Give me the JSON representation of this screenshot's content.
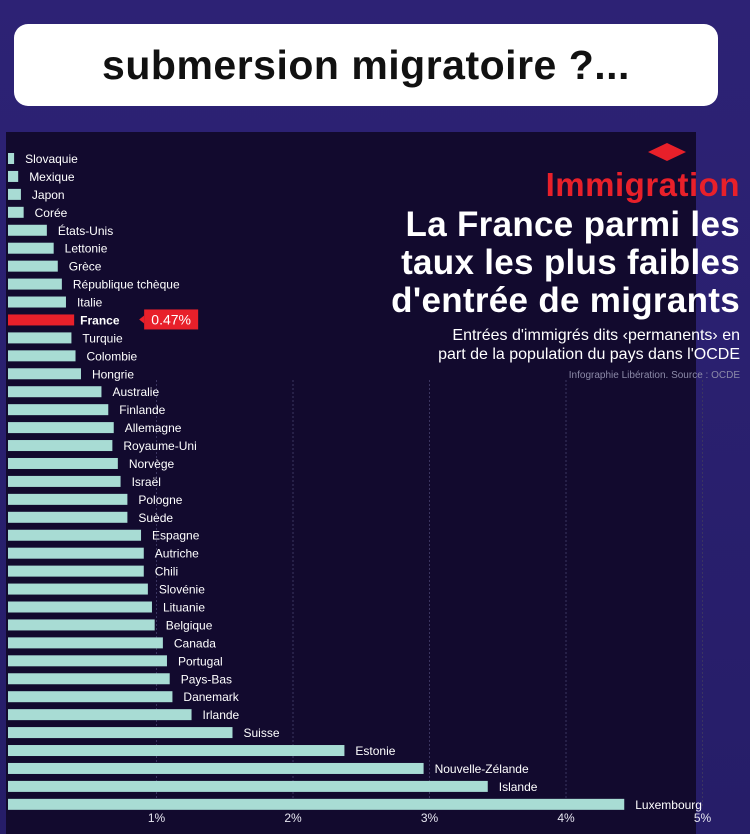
{
  "banner": {
    "text": "submersion migratoire ?..."
  },
  "headline": {
    "kicker": "Immigration",
    "title_lines": [
      "La France parmi les",
      "taux les plus faibles",
      "d'entrée de migrants"
    ],
    "subtitle_lines": [
      "Entrées d'immigrés dits ‹permanents› en",
      "part de la population du pays dans l'OCDE"
    ],
    "source": "Infographie Libération. Source : OCDE"
  },
  "colors": {
    "background": "#120a2e",
    "bar": "#a8dcd4",
    "highlight": "#e8202a",
    "label": "#ffffff",
    "grid": "#3b3560"
  },
  "chart_data": {
    "type": "bar",
    "orientation": "horizontal",
    "categories": [
      "Slovaquie",
      "Mexique",
      "Japon",
      "Corée",
      "États-Unis",
      "Lettonie",
      "Grèce",
      "République tchèque",
      "Italie",
      "France",
      "Turquie",
      "Colombie",
      "Hongrie",
      "Australie",
      "Finlande",
      "Allemagne",
      "Royaume-Uni",
      "Norvège",
      "Israël",
      "Pologne",
      "Suède",
      "Espagne",
      "Autriche",
      "Chili",
      "Slovénie",
      "Lituanie",
      "Belgique",
      "Canada",
      "Portugal",
      "Pays-Bas",
      "Danemark",
      "Irlande",
      "Suisse",
      "Estonie",
      "Nouvelle-Zélande",
      "Islande",
      "Luxembourg"
    ],
    "values": [
      0.03,
      0.06,
      0.08,
      0.1,
      0.27,
      0.32,
      0.35,
      0.38,
      0.41,
      0.47,
      0.45,
      0.48,
      0.52,
      0.67,
      0.72,
      0.76,
      0.75,
      0.79,
      0.81,
      0.86,
      0.86,
      0.96,
      0.98,
      0.98,
      1.01,
      1.04,
      1.06,
      1.12,
      1.15,
      1.17,
      1.19,
      1.33,
      1.63,
      2.45,
      3.03,
      3.5,
      4.5
    ],
    "highlight": {
      "category": "France",
      "label": "0.47%"
    },
    "xlim": [
      0,
      5
    ],
    "xticks": [
      "1%",
      "2%",
      "3%",
      "4%",
      "5%"
    ],
    "xtick_values": [
      1,
      2,
      3,
      4,
      5
    ],
    "grid": true
  }
}
